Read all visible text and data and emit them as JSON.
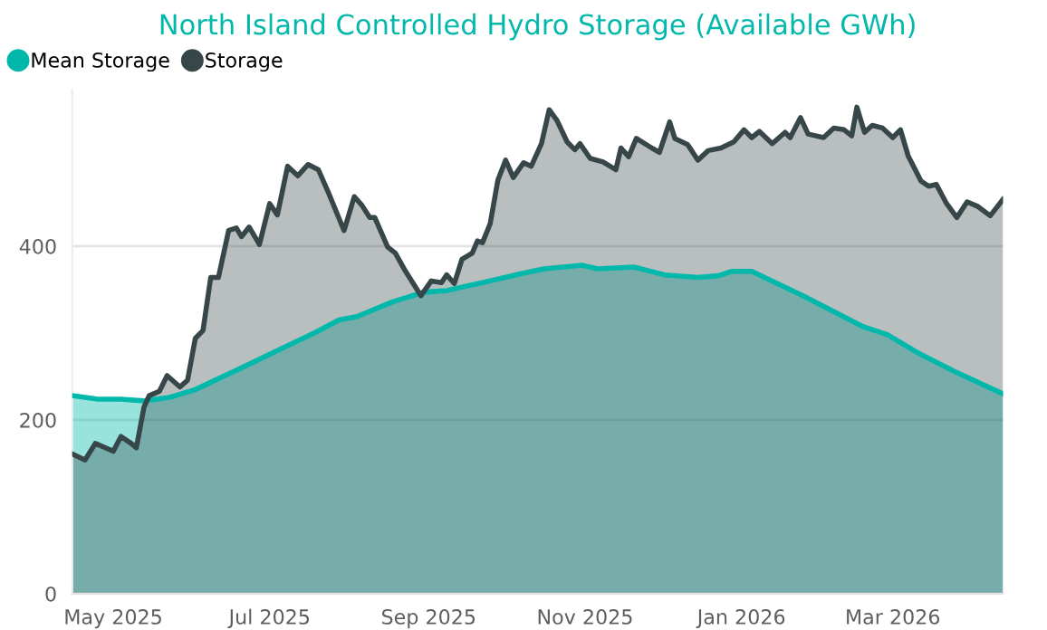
{
  "chart_data": {
    "type": "area",
    "title": "North Island Controlled Hydro Storage (Available GWh)",
    "xlim": [
      "2025-04-15",
      "2026-04-13"
    ],
    "xticks": [
      {
        "value": "2025-05-01",
        "label": "May 2025"
      },
      {
        "value": "2025-07-01",
        "label": "Jul 2025"
      },
      {
        "value": "2025-09-01",
        "label": "Sep 2025"
      },
      {
        "value": "2025-11-01",
        "label": "Nov 2025"
      },
      {
        "value": "2026-01-01",
        "label": "Jan 2026"
      },
      {
        "value": "2026-03-01",
        "label": "Mar 2026"
      }
    ],
    "ylim": [
      0,
      580
    ],
    "yticks": [
      0,
      200,
      400
    ],
    "grid": "y",
    "legend": "top left",
    "marker": "none",
    "line_style": "solid",
    "series": [
      {
        "name": "Mean Storage",
        "color": "#01b8aa",
        "x": [
          "2025-04-15",
          "2025-04-25",
          "2025-05-04",
          "2025-05-13",
          "2025-05-23",
          "2025-06-02",
          "2025-06-20",
          "2025-07-07",
          "2025-07-19",
          "2025-07-28",
          "2025-08-04",
          "2025-08-18",
          "2025-08-30",
          "2025-09-08",
          "2025-09-22",
          "2025-10-08",
          "2025-10-16",
          "2025-10-31",
          "2025-11-06",
          "2025-11-20",
          "2025-12-02",
          "2025-12-15",
          "2025-12-23",
          "2025-12-28",
          "2026-01-05",
          "2026-01-25",
          "2026-02-17",
          "2026-02-27",
          "2026-03-11",
          "2026-03-25",
          "2026-04-13"
        ],
        "values": [
          228,
          224,
          224,
          222,
          226,
          235,
          260,
          284,
          301,
          315,
          319,
          336,
          347,
          349,
          358,
          369,
          374,
          378,
          374,
          376,
          367,
          364,
          366,
          371,
          371,
          343,
          308,
          298,
          277,
          256,
          230
        ]
      },
      {
        "name": "Storage",
        "color": "#374649",
        "x": [
          "2025-04-15",
          "2025-04-20",
          "2025-04-24",
          "2025-04-28",
          "2025-05-01",
          "2025-05-04",
          "2025-05-08",
          "2025-05-10",
          "2025-05-13",
          "2025-05-15",
          "2025-05-19",
          "2025-05-22",
          "2025-05-27",
          "2025-05-30",
          "2025-06-02",
          "2025-06-05",
          "2025-06-08",
          "2025-06-11",
          "2025-06-15",
          "2025-06-18",
          "2025-06-20",
          "2025-06-23",
          "2025-06-27",
          "2025-07-01",
          "2025-07-04",
          "2025-07-08",
          "2025-07-12",
          "2025-07-16",
          "2025-07-20",
          "2025-07-24",
          "2025-07-30",
          "2025-08-03",
          "2025-08-06",
          "2025-08-09",
          "2025-08-11",
          "2025-08-16",
          "2025-08-19",
          "2025-08-23",
          "2025-08-29",
          "2025-09-02",
          "2025-09-06",
          "2025-09-08",
          "2025-09-11",
          "2025-09-14",
          "2025-09-18",
          "2025-09-20",
          "2025-09-22",
          "2025-09-25",
          "2025-09-28",
          "2025-10-01",
          "2025-10-04",
          "2025-10-08",
          "2025-10-11",
          "2025-10-15",
          "2025-10-18",
          "2025-10-21",
          "2025-10-25",
          "2025-10-28",
          "2025-10-30",
          "2025-11-03",
          "2025-11-08",
          "2025-11-13",
          "2025-11-15",
          "2025-11-18",
          "2025-11-21",
          "2025-11-27",
          "2025-11-30",
          "2025-12-04",
          "2025-12-06",
          "2025-12-11",
          "2025-12-15",
          "2025-12-19",
          "2025-12-24",
          "2025-12-29",
          "2026-01-02",
          "2026-01-05",
          "2026-01-08",
          "2026-01-13",
          "2026-01-18",
          "2026-01-20",
          "2026-01-24",
          "2026-01-27",
          "2026-02-02",
          "2026-02-06",
          "2026-02-10",
          "2026-02-13",
          "2026-02-15",
          "2026-02-18",
          "2026-02-21",
          "2026-02-25",
          "2026-03-01",
          "2026-03-04",
          "2026-03-07",
          "2026-03-12",
          "2026-03-15",
          "2026-03-18",
          "2026-03-22",
          "2026-03-26",
          "2026-03-30",
          "2026-04-03",
          "2026-04-08",
          "2026-04-13"
        ],
        "values": [
          161,
          154,
          173,
          168,
          164,
          181,
          173,
          168,
          215,
          228,
          233,
          251,
          238,
          246,
          294,
          303,
          364,
          364,
          418,
          421,
          411,
          422,
          402,
          449,
          436,
          492,
          481,
          494,
          488,
          461,
          418,
          457,
          447,
          433,
          433,
          399,
          392,
          371,
          343,
          360,
          358,
          367,
          357,
          385,
          392,
          406,
          404,
          426,
          476,
          499,
          479,
          496,
          492,
          518,
          557,
          545,
          520,
          511,
          518,
          501,
          497,
          488,
          513,
          503,
          524,
          513,
          508,
          543,
          524,
          517,
          499,
          510,
          513,
          520,
          534,
          525,
          532,
          518,
          531,
          525,
          548,
          529,
          525,
          536,
          534,
          527,
          560,
          531,
          539,
          536,
          525,
          534,
          504,
          475,
          469,
          471,
          449,
          433,
          451,
          446,
          435,
          454
        ]
      }
    ]
  }
}
